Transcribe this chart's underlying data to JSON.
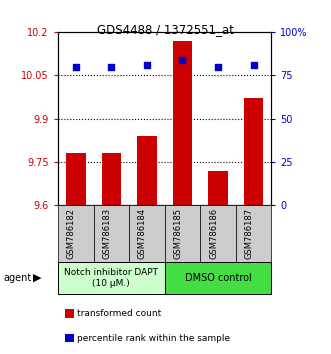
{
  "title": "GDS4488 / 1372551_at",
  "samples": [
    "GSM786182",
    "GSM786183",
    "GSM786184",
    "GSM786185",
    "GSM786186",
    "GSM786187"
  ],
  "bar_values": [
    9.78,
    9.78,
    9.84,
    10.17,
    9.72,
    9.97
  ],
  "percentile_values": [
    80,
    80,
    81,
    84,
    80,
    81
  ],
  "bar_color": "#cc0000",
  "dot_color": "#0000cc",
  "ylim_left": [
    9.6,
    10.2
  ],
  "ylim_right": [
    0,
    100
  ],
  "yticks_left": [
    9.6,
    9.75,
    9.9,
    10.05,
    10.2
  ],
  "ytick_labels_left": [
    "9.6",
    "9.75",
    "9.9",
    "10.05",
    "10.2"
  ],
  "yticks_right": [
    0,
    25,
    50,
    75,
    100
  ],
  "ytick_labels_right": [
    "0",
    "25",
    "50",
    "75",
    "100%"
  ],
  "hlines": [
    9.75,
    9.9,
    10.05
  ],
  "group1_label": "Notch inhibitor DAPT\n(10 μM.)",
  "group2_label": "DMSO control",
  "group1_color": "#ccffcc",
  "group2_color": "#44dd44",
  "agent_label": "agent",
  "legend_bar_label": "transformed count",
  "legend_dot_label": "percentile rank within the sample",
  "bar_bottom": 9.6,
  "sample_box_color": "#cccccc"
}
